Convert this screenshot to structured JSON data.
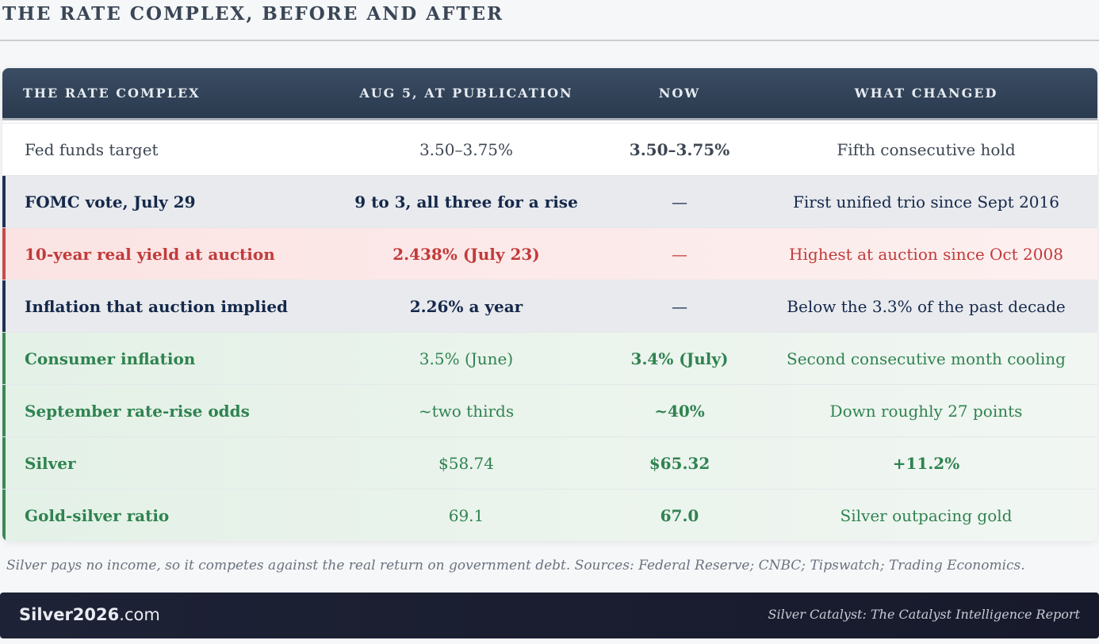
{
  "page": {
    "title": "THE RATE COMPLEX, BEFORE AND AFTER"
  },
  "table": {
    "headers": [
      "THE RATE COMPLEX",
      "AUG 5, AT PUBLICATION",
      "NOW",
      "WHAT CHANGED"
    ],
    "rows": [
      {
        "label": "Fed funds target",
        "then": "3.50–3.75%",
        "now": "3.50–3.75%",
        "change": "Fifth consecutive hold",
        "style": "neutral"
      },
      {
        "label": "FOMC vote, July 29",
        "then": "9 to 3, all three for a rise",
        "now": "—",
        "change": "First unified trio since Sept 2016",
        "style": "navy"
      },
      {
        "label": "10-year real yield at auction",
        "then": "2.438% (July 23)",
        "now": "—",
        "change": "Highest at auction since Oct 2008",
        "style": "red"
      },
      {
        "label": "Inflation that auction implied",
        "then": "2.26% a year",
        "now": "—",
        "change": "Below the 3.3% of the past decade",
        "style": "navy"
      },
      {
        "label": "Consumer inflation",
        "then": "3.5% (June)",
        "now": "3.4% (July)",
        "change": "Second consecutive month cooling",
        "style": "green"
      },
      {
        "label": "September rate-rise odds",
        "then": "~two thirds",
        "now": "~40%",
        "change": "Down roughly 27 points",
        "style": "green"
      },
      {
        "label": "Silver",
        "then": "$58.74",
        "now": "$65.32",
        "change": "+11.2%",
        "style": "green"
      },
      {
        "label": "Gold-silver ratio",
        "then": "69.1",
        "now": "67.0",
        "change": "Silver outpacing gold",
        "style": "green"
      }
    ]
  },
  "caption": "Silver pays no income, so it competes against the real return on government debt. Sources: Federal Reserve; CNBC; Tipswatch; Trading Economics.",
  "footer": {
    "brand_main": "Silver2026",
    "brand_suffix": ".com",
    "report": "Silver Catalyst: The Catalyst Intelligence Report"
  }
}
